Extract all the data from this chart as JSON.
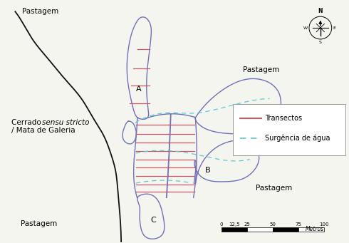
{
  "map_bg": "#f5f5f0",
  "gully_color": "#7070bb",
  "gully_lw": 1.0,
  "forest_color": "#111111",
  "forest_lw": 1.3,
  "transect_color": "#cc5566",
  "transect_lw": 0.9,
  "water_color": "#55cccc",
  "water_lw": 0.9,
  "legend_transect": "Transectos",
  "legend_water": "Surgência de água",
  "scale_labels": [
    "0",
    "12,5",
    "25",
    "50",
    "75",
    "100"
  ],
  "scale_label_metros": "Metros"
}
